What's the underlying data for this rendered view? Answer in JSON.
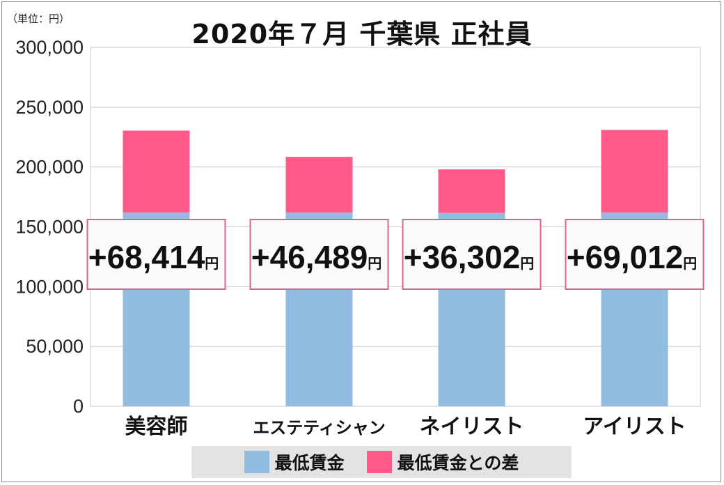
{
  "unit_label": "（単位：円）",
  "title": "2020年７月 千葉県 正社員",
  "colors": {
    "base": "#92bde0",
    "diff": "#ff5a8a",
    "box_border": "#e0608e",
    "grid": "#c8c8c8"
  },
  "chart_data": {
    "type": "bar",
    "stacked": true,
    "categories": [
      "美容師",
      "エステティシャン",
      "ネイリスト",
      "アイリスト"
    ],
    "series": [
      {
        "name": "最低賃金",
        "values": [
          162000,
          162000,
          161700,
          162000
        ]
      },
      {
        "name": "最低賃金との差",
        "values": [
          68414,
          46489,
          36302,
          69012
        ]
      }
    ],
    "diff_labels": [
      "+68,414",
      "+46,489",
      "+36,302",
      "+69,012"
    ],
    "diff_unit": "円",
    "y_ticks": [
      "0",
      "50,000",
      "100,000",
      "150,000",
      "200,000",
      "250,000",
      "300,000"
    ],
    "ylim": [
      0,
      300000
    ],
    "grid": true,
    "legend_position": "bottom"
  }
}
